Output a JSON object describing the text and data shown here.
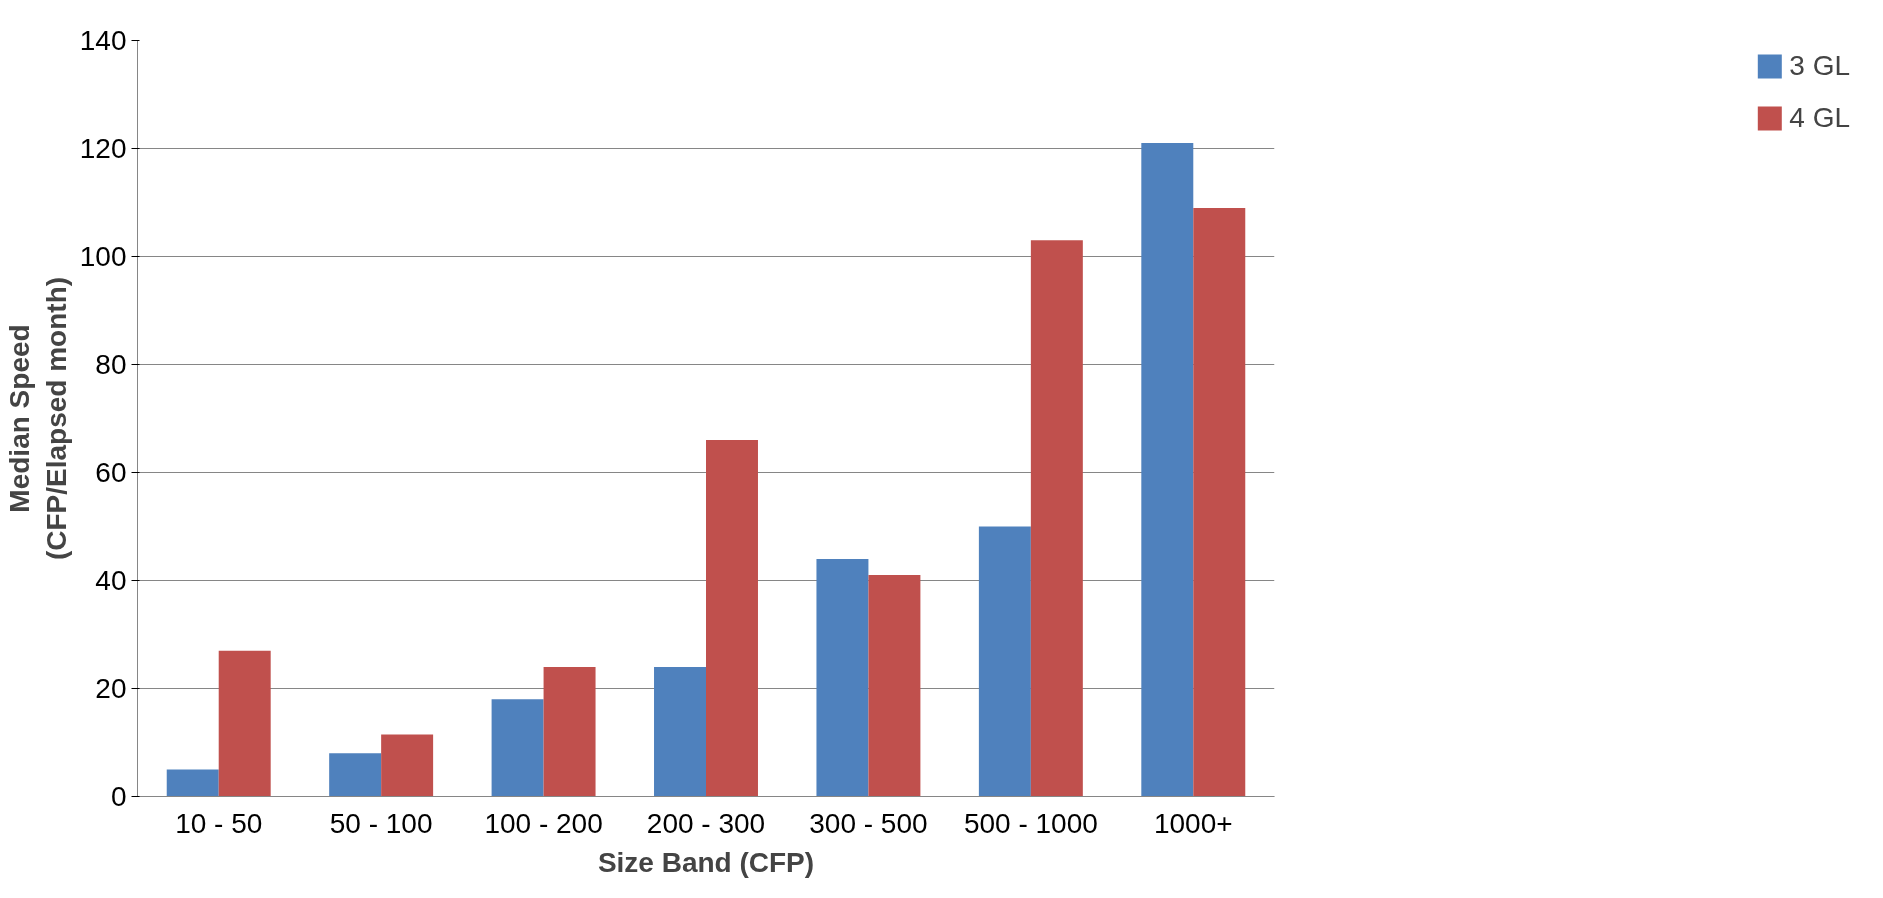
{
  "chart_data": {
    "type": "bar",
    "xlabel": "Size Band (CFP)",
    "ylabel": "Median Speed\n(CFP/Elapsed month)",
    "categories": [
      "10 - 50",
      "50 - 100",
      "100 - 200",
      "200 - 300",
      "300 - 500",
      "500 - 1000",
      "1000+"
    ],
    "series": [
      {
        "name": "3 GL",
        "color": "#4f81bd",
        "values": [
          5,
          8,
          18,
          24,
          44,
          50,
          121
        ]
      },
      {
        "name": "4 GL",
        "color": "#c0504d",
        "values": [
          27,
          11.5,
          24,
          66,
          41,
          103,
          109
        ]
      }
    ],
    "ylim": [
      0,
      140
    ],
    "yticks": [
      0,
      20,
      40,
      60,
      80,
      100,
      120,
      140
    ],
    "grid": "y",
    "legend": "right"
  }
}
